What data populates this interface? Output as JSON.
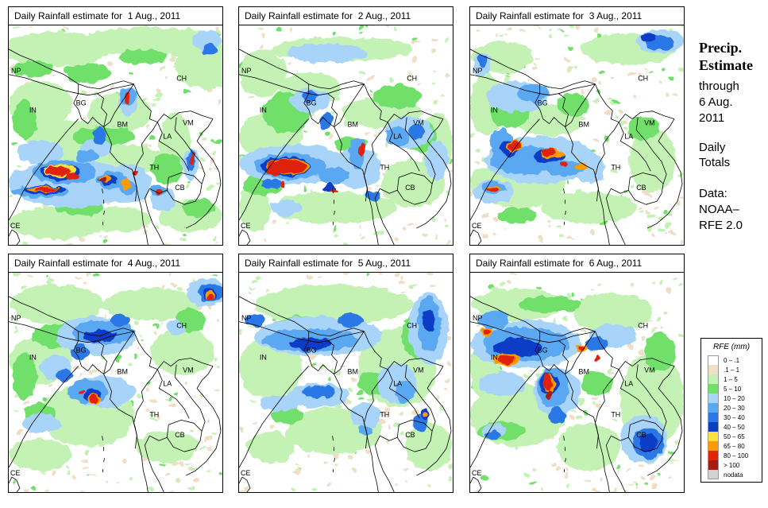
{
  "panels": [
    {
      "title": "Daily Rainfall estimate for  1 Aug., 2011"
    },
    {
      "title": "Daily Rainfall estimate for  2 Aug., 2011"
    },
    {
      "title": "Daily Rainfall estimate for  3 Aug., 2011"
    },
    {
      "title": "Daily Rainfall estimate for  4 Aug., 2011"
    },
    {
      "title": "Daily Rainfall estimate for  5 Aug., 2011"
    },
    {
      "title": "Daily Rainfall estimate for  6 Aug., 2011"
    }
  ],
  "country_labels": {
    "NP": "NP",
    "CH": "CH",
    "IN": "IN",
    "BG": "BG",
    "BM": "BM",
    "VM": "VM",
    "LA": "LA",
    "TH": "TH",
    "CB": "CB",
    "CE": "CE"
  },
  "sidebar": {
    "title_line1": "Precip.",
    "title_line2": "Estimate",
    "through": "through",
    "date": "6 Aug.",
    "year": "2011",
    "daily": "Daily",
    "totals": "Totals",
    "data_label": "Data:",
    "source_line1": "NOAA–",
    "source_line2": "RFE 2.0"
  },
  "legend": {
    "title": "RFE (mm)",
    "items": [
      {
        "label": "0 – .1",
        "color": "#ffffff"
      },
      {
        "label": ".1 – 1",
        "color": "#efdfc6"
      },
      {
        "label": "1 – 5",
        "color": "#c4f2b4"
      },
      {
        "label": "5 – 10",
        "color": "#6fe06a"
      },
      {
        "label": "10 – 20",
        "color": "#a8d4fa"
      },
      {
        "label": "20 – 30",
        "color": "#5aa8f2"
      },
      {
        "label": "30 – 40",
        "color": "#2a78e6"
      },
      {
        "label": "40 – 50",
        "color": "#0c3ec6"
      },
      {
        "label": "50 – 65",
        "color": "#ffe040"
      },
      {
        "label": "65 – 80",
        "color": "#ff9a00"
      },
      {
        "label": "80 – 100",
        "color": "#e02408"
      },
      {
        "label": "> 100",
        "color": "#a41c14"
      },
      {
        "label": "nodata",
        "color": "#d2d2d2"
      }
    ]
  }
}
